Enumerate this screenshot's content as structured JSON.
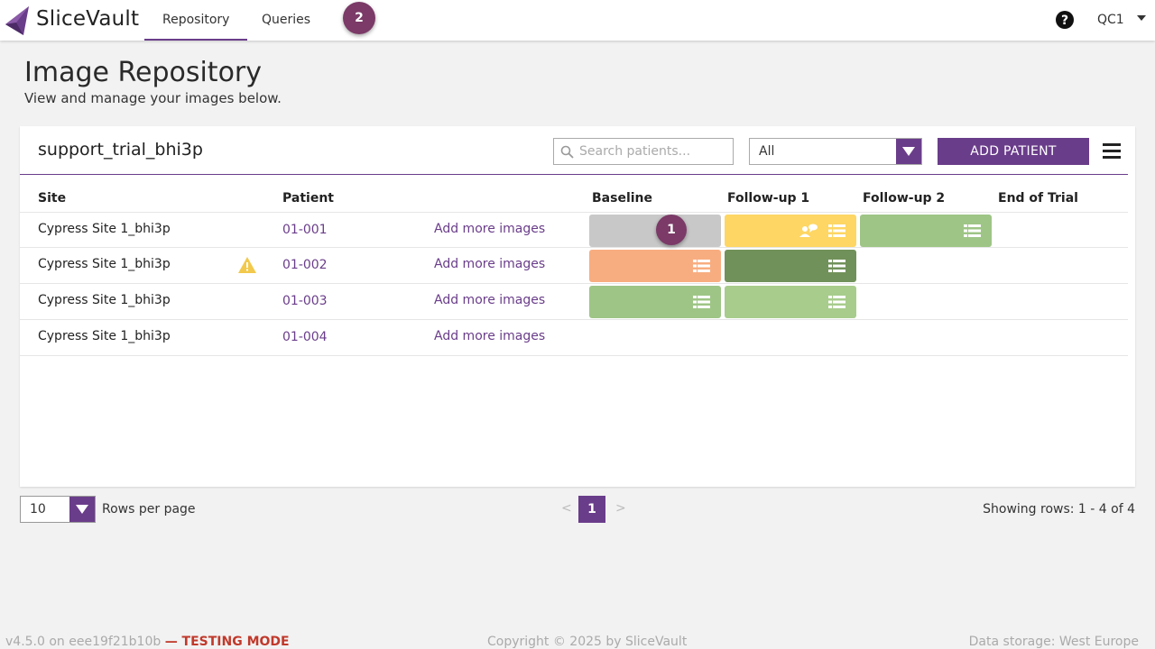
{
  "app": {
    "brand": "SliceVault",
    "brand_color": "#6a3d8a"
  },
  "nav": {
    "tabs": [
      {
        "label": "Repository",
        "active": true
      },
      {
        "label": "Queries",
        "active": false
      }
    ],
    "step_badge": "2",
    "help_icon": "question-circle-icon",
    "user": "QC1"
  },
  "header": {
    "title": "Image Repository",
    "subtitle": "View and manage your images below."
  },
  "panel": {
    "trial_name": "support_trial_bhi3p",
    "search_placeholder": "Search patients...",
    "filter_value": "All",
    "add_button": "ADD PATIENT",
    "menu_icon": "hamburger-icon"
  },
  "table": {
    "columns": [
      "Site",
      "Patient",
      "Baseline",
      "Follow-up 1",
      "Follow-up 2",
      "End of Trial"
    ],
    "step_badge": "1",
    "rows": [
      {
        "site": "Cypress Site 1_bhi3p",
        "patient": "01-001",
        "action": "Add more images",
        "warning": false,
        "visits": [
          {
            "status_color": "#c8c8c8",
            "icons": []
          },
          {
            "status_color": "#fdd663",
            "icons": [
              "person-comment-icon",
              "list-icon"
            ]
          },
          {
            "status_color": "#9ec586",
            "icons": [
              "list-icon"
            ]
          }
        ]
      },
      {
        "site": "Cypress Site 1_bhi3p",
        "patient": "01-002",
        "action": "Add more images",
        "warning": true,
        "visits": [
          {
            "status_color": "#f8ad80",
            "icons": [
              "list-icon"
            ]
          },
          {
            "status_color": "#71915a",
            "icons": [
              "list-icon"
            ]
          }
        ]
      },
      {
        "site": "Cypress Site 1_bhi3p",
        "patient": "01-003",
        "action": "Add more images",
        "warning": false,
        "visits": [
          {
            "status_color": "#9ec586",
            "icons": [
              "list-icon"
            ]
          },
          {
            "status_color": "#a8cc8c",
            "icons": [
              "list-icon"
            ]
          }
        ]
      },
      {
        "site": "Cypress Site 1_bhi3p",
        "patient": "01-004",
        "action": "Add more images",
        "warning": false,
        "visits": []
      }
    ]
  },
  "pagination": {
    "rows_per_page": "10",
    "rows_label": "Rows per page",
    "prev": "<",
    "current_page": "1",
    "next": ">",
    "showing": "Showing rows: 1 - 4 of 4"
  },
  "footer": {
    "version": "v4.5.0 on eee19f21b10b",
    "mode": "— TESTING MODE",
    "copyright": "Copyright © 2025 by SliceVault",
    "storage": "Data storage: West Europe"
  }
}
